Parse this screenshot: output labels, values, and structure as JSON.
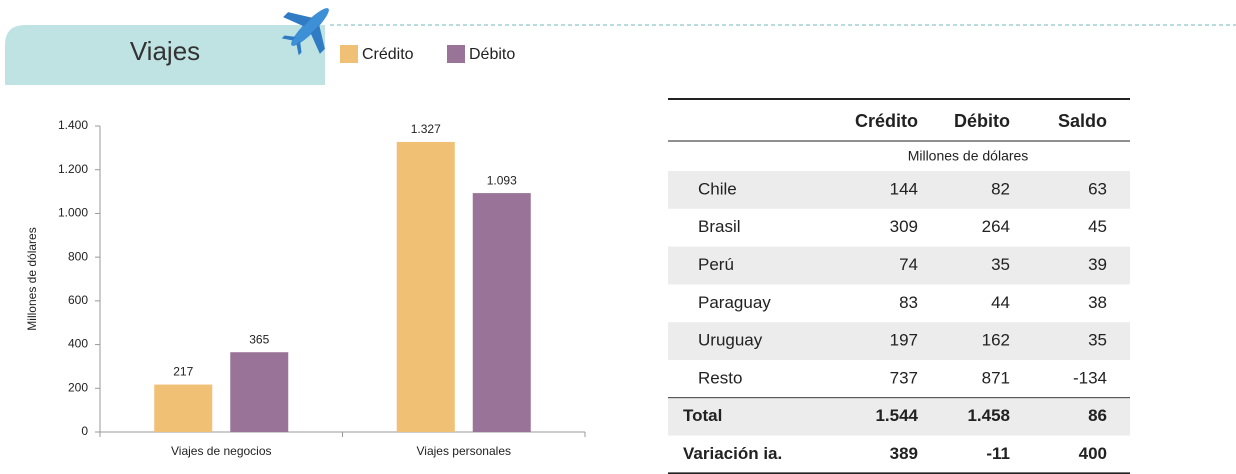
{
  "header": {
    "title": "Viajes"
  },
  "chart_data": {
    "type": "bar",
    "y_label": "Millones de dólares",
    "categories": [
      "Viajes de negocios",
      "Viajes personales"
    ],
    "series": [
      {
        "name": "Crédito",
        "color": "#f0c074",
        "values": [
          217,
          1327
        ],
        "value_labels": [
          "217",
          "1.327"
        ]
      },
      {
        "name": "Débito",
        "color": "#9a7398",
        "values": [
          365,
          1093
        ],
        "value_labels": [
          "365",
          "1.093"
        ]
      }
    ],
    "ylim": [
      0,
      1400
    ],
    "yticks": [
      0,
      200,
      400,
      600,
      800,
      {
        "value": 1000,
        "label": "1.000"
      },
      {
        "value": 1200,
        "label": "1.200"
      },
      {
        "value": 1400,
        "label": "1.400"
      }
    ],
    "grid": false
  },
  "table": {
    "columns": [
      "Crédito",
      "Débito",
      "Saldo"
    ],
    "unit": "Millones de dólares",
    "rows": [
      [
        "Chile",
        "144",
        "82",
        "63"
      ],
      [
        "Brasil",
        "309",
        "264",
        "45"
      ],
      [
        "Perú",
        "74",
        "35",
        "39"
      ],
      [
        "Paraguay",
        "83",
        "44",
        "38"
      ],
      [
        "Uruguay",
        "197",
        "162",
        "35"
      ],
      [
        "Resto",
        "737",
        "871",
        "-134"
      ]
    ],
    "summary_rows": [
      [
        "Total",
        "1.544",
        "1.458",
        "86"
      ],
      [
        "Variación ia.",
        "389",
        "-11",
        "400"
      ]
    ]
  }
}
